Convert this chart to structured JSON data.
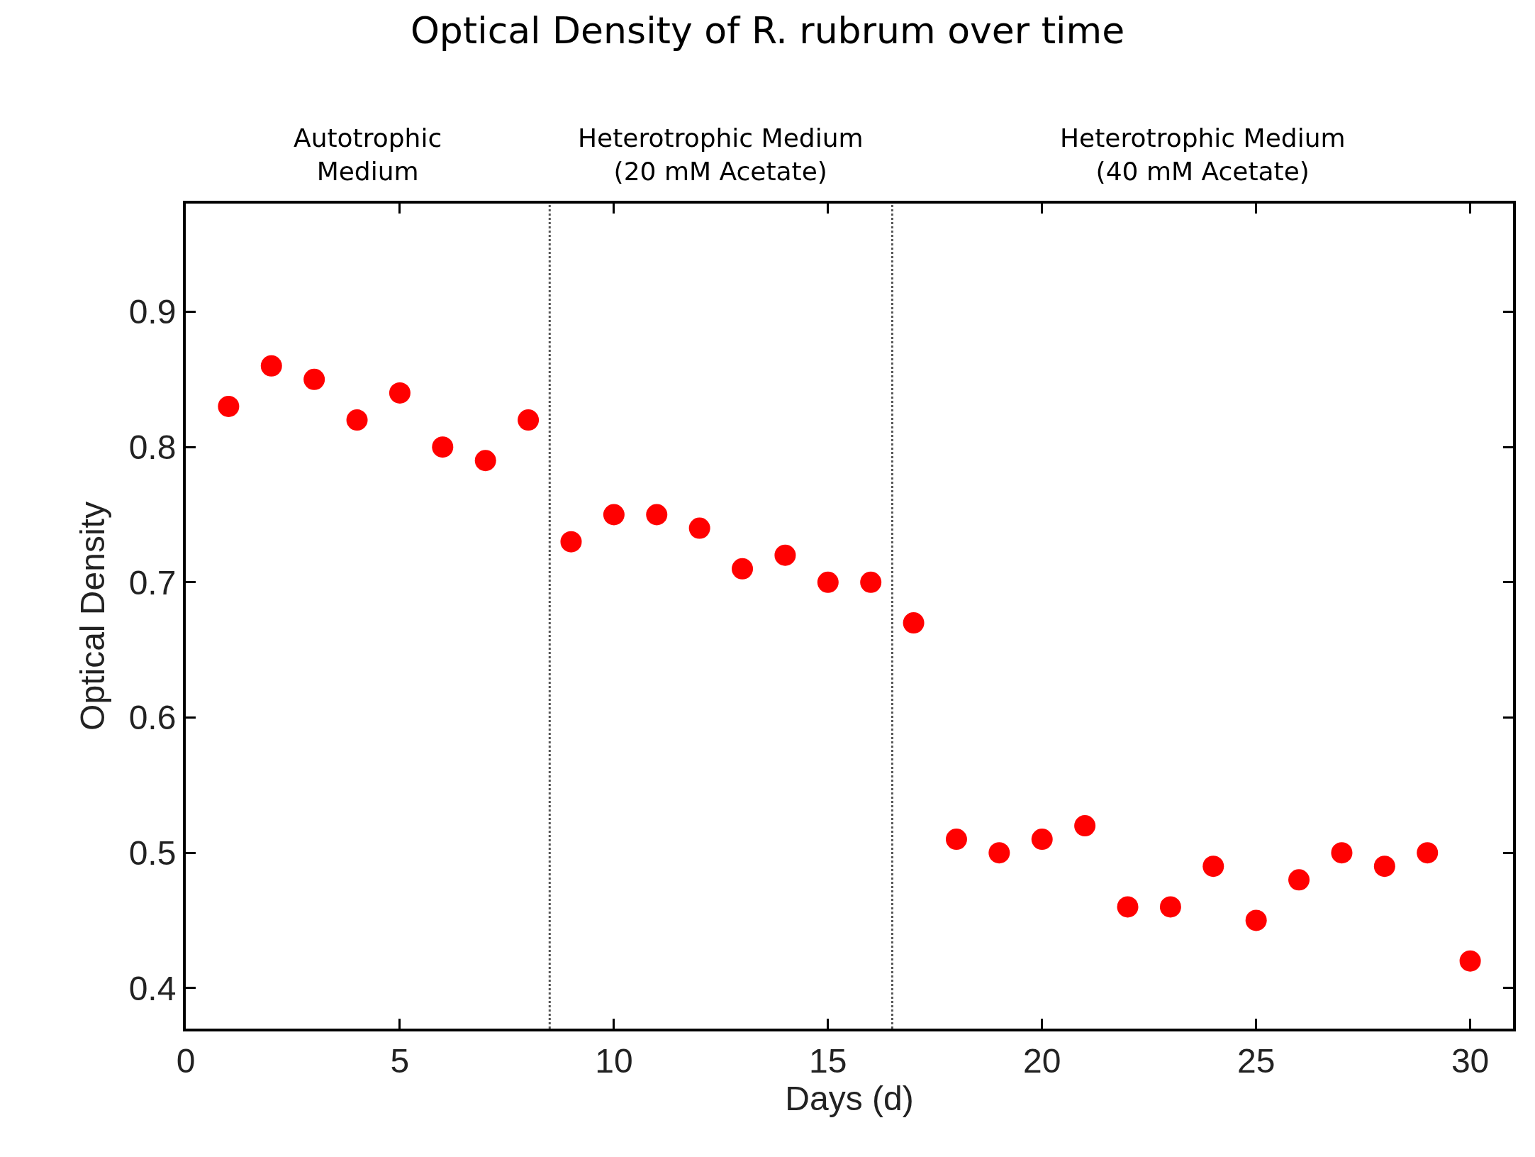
{
  "chart_data": {
    "type": "scatter",
    "title": "Optical Density of R. rubrum over time",
    "xlabel": "Days (d)",
    "ylabel": "Optical Density",
    "x": [
      1,
      2,
      3,
      4,
      5,
      6,
      7,
      8,
      9,
      10,
      11,
      12,
      13,
      14,
      15,
      16,
      17,
      18,
      19,
      20,
      21,
      22,
      23,
      24,
      25,
      26,
      27,
      28,
      29,
      30
    ],
    "series": [
      {
        "color": "#ff0000",
        "values": [
          0.83,
          0.86,
          0.85,
          0.82,
          0.84,
          0.8,
          0.79,
          0.82,
          0.73,
          0.75,
          0.75,
          0.74,
          0.71,
          0.72,
          0.7,
          0.7,
          0.67,
          0.51,
          0.5,
          0.51,
          0.52,
          0.46,
          0.46,
          0.49,
          0.45,
          0.48,
          0.5,
          0.49,
          0.5,
          0.42
        ]
      }
    ],
    "xlim": [
      0,
      31
    ],
    "xticks": [
      0,
      5,
      10,
      15,
      20,
      25,
      30
    ],
    "ylim": [
      0.37,
      0.98
    ],
    "yticks": [
      0.4,
      0.5,
      0.6,
      0.7,
      0.8,
      0.9
    ],
    "ref_lines": [
      {
        "axis": "x",
        "value": 8.5,
        "color": "#555555",
        "line_style": "dotted"
      },
      {
        "axis": "x",
        "value": 16.5,
        "color": "#555555",
        "line_style": "dotted"
      }
    ],
    "annotations": [
      "Autotrophic\nMedium",
      "Heterotrophic Medium\n(20 mM Acetate)",
      "Heterotrophic Medium\n(40 mM Acetate)"
    ],
    "marker": "circle"
  }
}
